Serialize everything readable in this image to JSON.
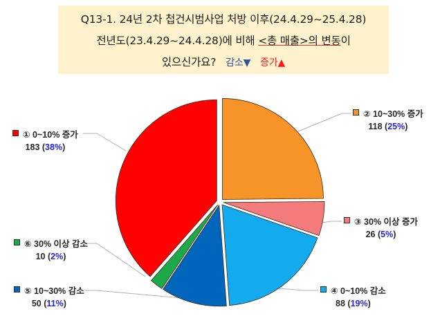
{
  "title": {
    "line1": "Q13-1. 24년 2차 첩건시범사업  처방 이후(24.4.29~25.4.28)",
    "line2_prefix": "전년도(23.4.29~24.4.28)에 비해 ",
    "line2_underlined": "<총 매출>의 변동",
    "line2_suffix": "이",
    "line3_prefix": "있으신가요?",
    "decrease_label": "감소▼",
    "increase_label": "증가▲",
    "colors": {
      "decrease": "#2f5597",
      "increase": "#ff1a1a",
      "background": "#fff2cc"
    }
  },
  "chart_data": {
    "type": "pie",
    "title": "Q13-1. 24년 2차 첩건시범사업 처방 이후(24.4.29~25.4.28) 전년도(23.4.29~24.4.28)에 비해 <총 매출>의 변동이 있으신가요?",
    "start_angle": "12 o'clock, clockwise from ②",
    "exploded": true,
    "slices": [
      {
        "id": "1",
        "label": "① 0~10% 증가",
        "count": 183,
        "percent": 38,
        "pct_text": "38%",
        "color": "#ff0000"
      },
      {
        "id": "2",
        "label": "② 10~30% 증가",
        "count": 118,
        "percent": 25,
        "pct_text": "25%",
        "color": "#f79428"
      },
      {
        "id": "3",
        "label": "③ 30% 이상 증가",
        "count": 26,
        "percent": 5,
        "pct_text": "5%",
        "color": "#f47b7b"
      },
      {
        "id": "4",
        "label": "④ 0~10% 감소",
        "count": 88,
        "percent": 19,
        "pct_text": "19%",
        "color": "#14aaee"
      },
      {
        "id": "5",
        "label": "⑤ 10~30% 감소",
        "count": 50,
        "percent": 11,
        "pct_text": "11%",
        "color": "#0066bb"
      },
      {
        "id": "6",
        "label": "⑥ 30% 이상 감소",
        "count": 10,
        "percent": 2,
        "pct_text": "2%",
        "color": "#1aaa4a"
      }
    ],
    "clockwise_order_from_top": [
      "2",
      "3",
      "4",
      "5",
      "6",
      "1"
    ]
  },
  "labels": {
    "s1": {
      "name": "① 0~10% 증가",
      "count": "183",
      "pct": "38%"
    },
    "s2": {
      "name": "② 10~30% 증가",
      "count": "118",
      "pct": "25%"
    },
    "s3": {
      "name": "③ 30% 이상 증가",
      "count": "26",
      "pct": "5%"
    },
    "s4": {
      "name": "④ 0~10% 감소",
      "count": "88",
      "pct": "19%"
    },
    "s5": {
      "name": "⑤ 10~30% 감소",
      "count": "50",
      "pct": "11%"
    },
    "s6": {
      "name": "⑥ 30% 이상 감소",
      "count": "10",
      "pct": "2%"
    }
  }
}
